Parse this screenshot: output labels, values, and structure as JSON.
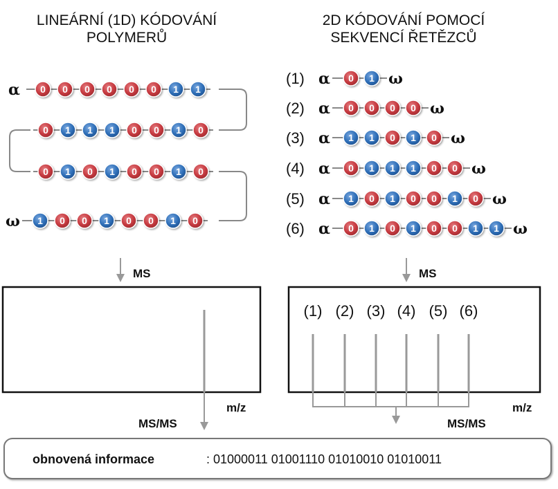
{
  "left_title": [
    "LINEÁRNÍ (1D) KÓDOVÁNÍ",
    "POLYMERŮ"
  ],
  "right_title": [
    "2D KÓDOVÁNÍ POMOCÍ",
    "SEKVENCÍ ŘETĚZCŮ"
  ],
  "alpha": "α",
  "omega": "ω",
  "linear_rows": [
    "00000011",
    "01110010",
    "01010010",
    "10010010"
  ],
  "left_start_bit": "0",
  "chains": [
    {
      "label": "(1)",
      "bits": "01"
    },
    {
      "label": "(2)",
      "bits": "0000"
    },
    {
      "label": "(3)",
      "bits": "11010"
    },
    {
      "label": "(4)",
      "bits": "011100"
    },
    {
      "label": "(5)",
      "bits": "1010010"
    },
    {
      "label": "(6)",
      "bits": "01010011"
    }
  ],
  "ms_label": "MS",
  "msms_label": "MS/MS",
  "mz_label": "m/z",
  "peak_labels": [
    "(1)",
    "(2)",
    "(3)",
    "(4)",
    "(5)",
    "(6)"
  ],
  "info_label": "obnovená informace",
  "info_value": ": 01000011 01001110 01010010 01010011",
  "colors": {
    "zero": "#c63a40",
    "one": "#2f6fb8",
    "arrow": "#999999",
    "link": "#888888"
  }
}
